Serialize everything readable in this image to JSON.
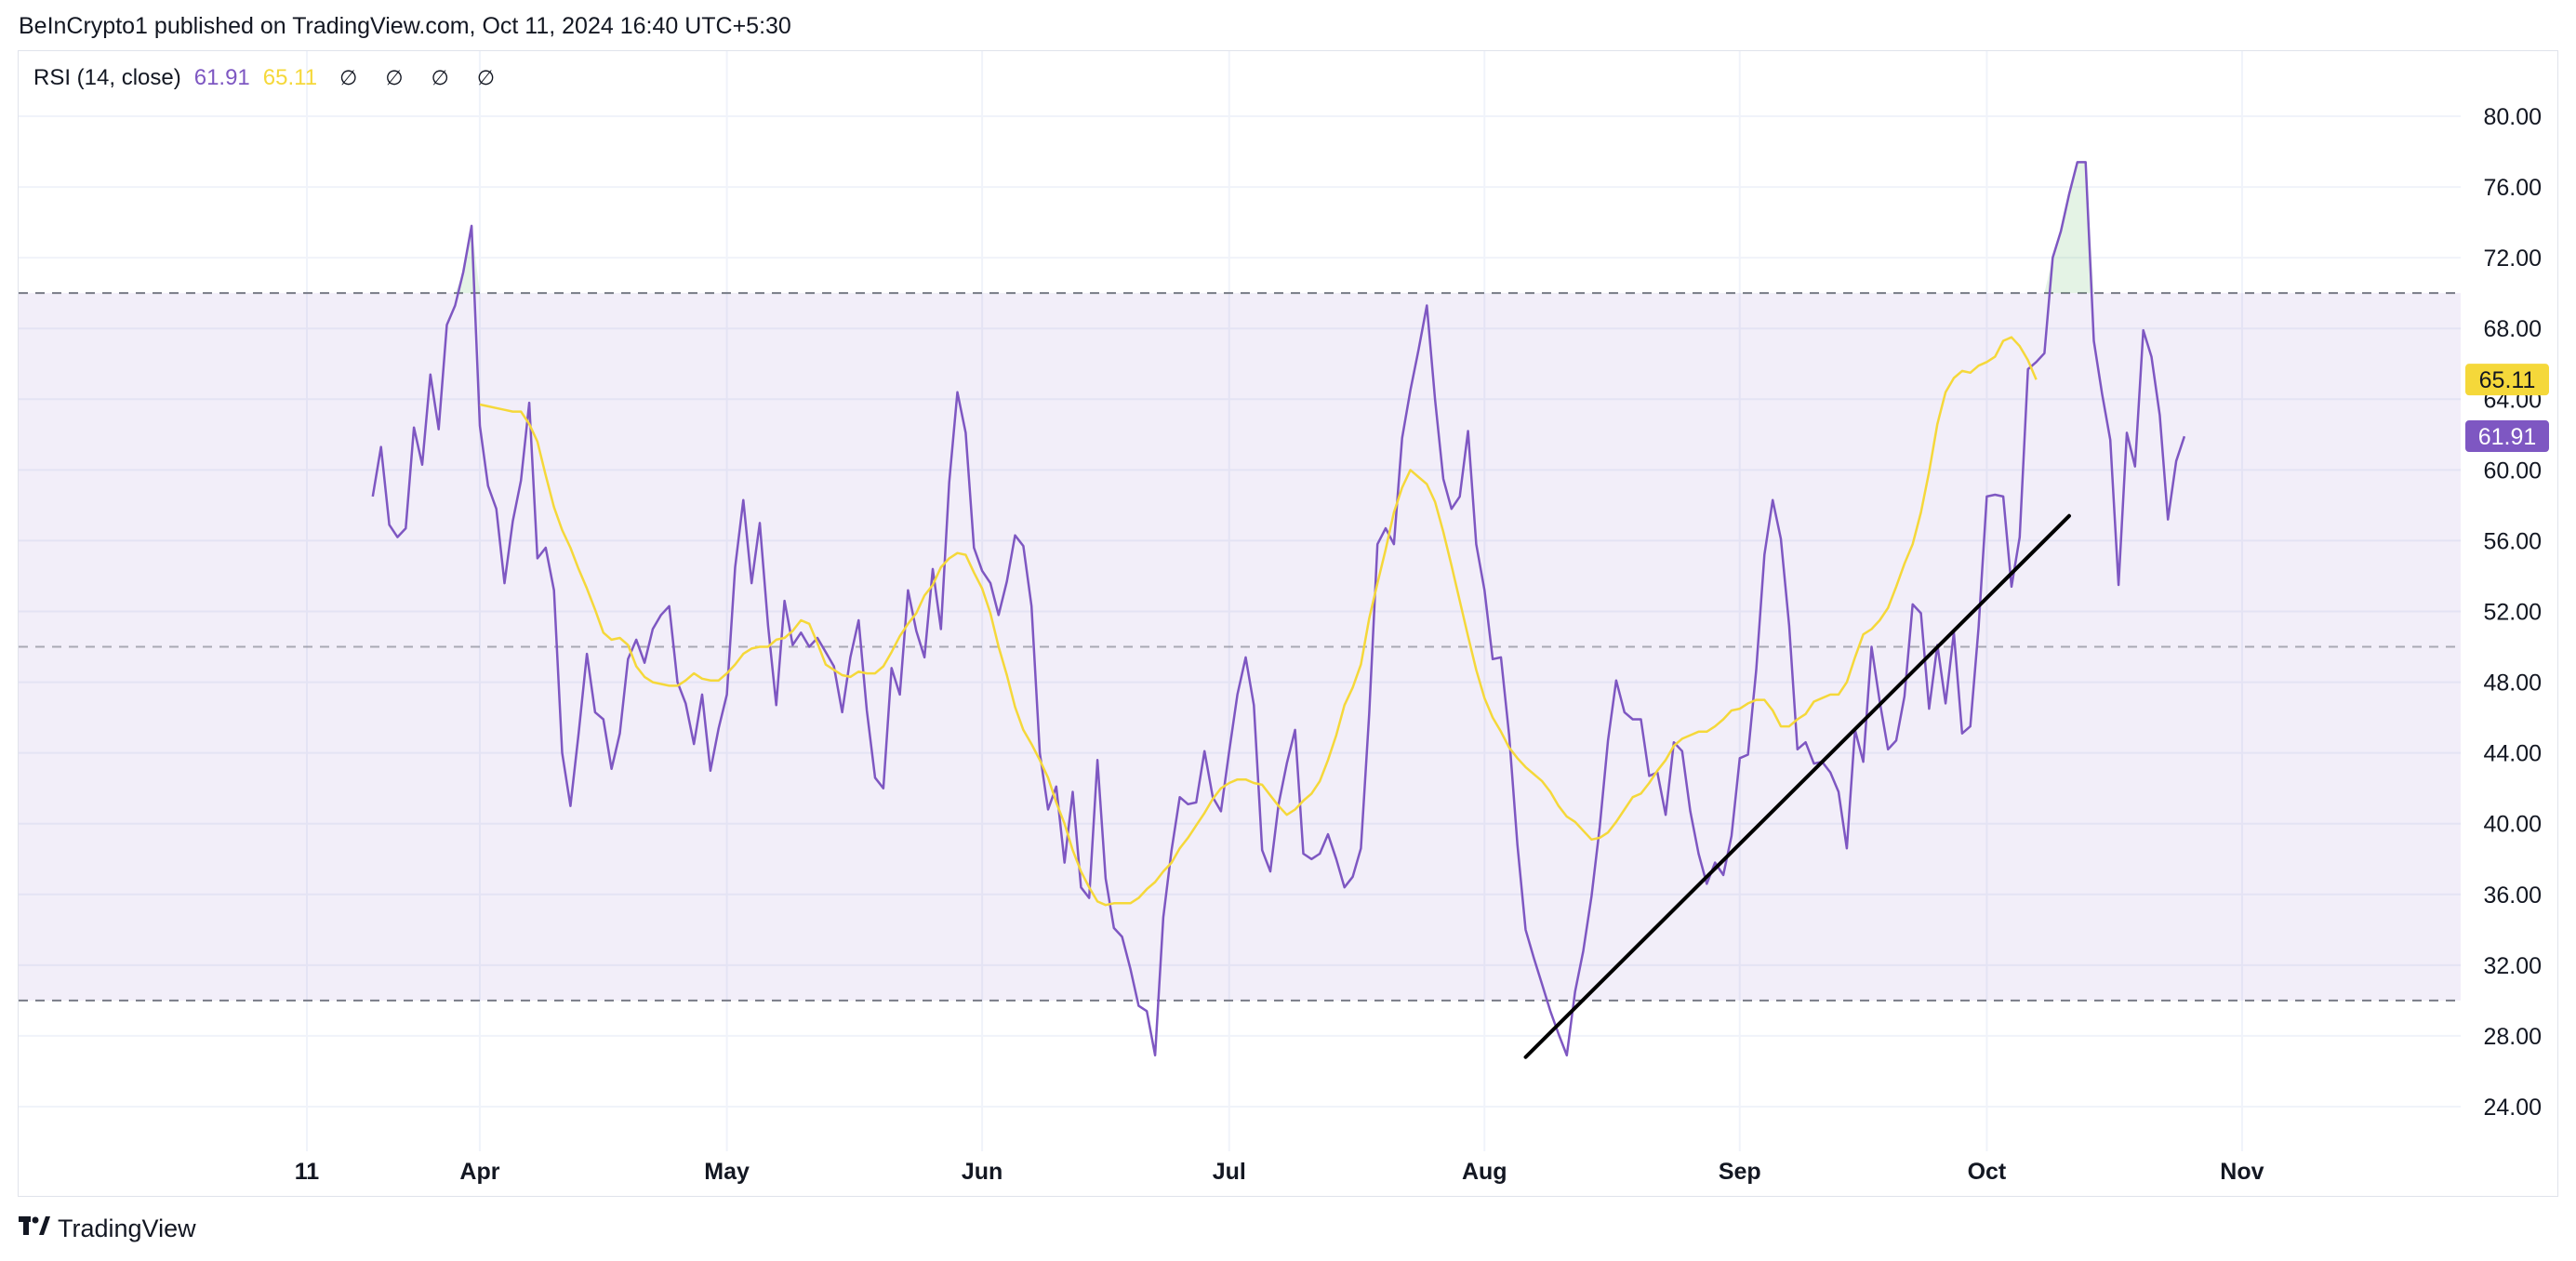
{
  "header": {
    "text": "BeInCrypto1 published on TradingView.com, Oct 11, 2024 16:40 UTC+5:30"
  },
  "legend": {
    "name": "RSI (14, close)",
    "rsi_value": "61.91",
    "ma_value": "65.11",
    "nulls": "∅ ∅ ∅ ∅"
  },
  "footer": {
    "logo_icon": "tradingview-logo-icon",
    "brand": "TradingView"
  },
  "colors": {
    "rsi": "#7e57c2",
    "rsi_ma": "#f5d83a",
    "band": "#7e57c2",
    "trendline": "#000000",
    "grid": "#f0f3fa"
  },
  "chart_data": {
    "type": "line",
    "ylim": [
      23,
      82
    ],
    "y_ticks": [
      "80.00",
      "76.00",
      "72.00",
      "68.00",
      "64.00",
      "60.00",
      "56.00",
      "52.00",
      "48.00",
      "44.00",
      "40.00",
      "36.00",
      "32.00",
      "28.00",
      "24.00"
    ],
    "x_ticks": [
      {
        "label": "11",
        "date": "2024-03-11"
      },
      {
        "label": "Apr",
        "date": "2024-04-01"
      },
      {
        "label": "May",
        "date": "2024-05-01"
      },
      {
        "label": "Jun",
        "date": "2024-06-01"
      },
      {
        "label": "Jul",
        "date": "2024-07-01"
      },
      {
        "label": "Aug",
        "date": "2024-08-01"
      },
      {
        "label": "Sep",
        "date": "2024-09-01"
      },
      {
        "label": "Oct",
        "date": "2024-10-01"
      },
      {
        "label": "Nov",
        "date": "2024-11-01"
      }
    ],
    "x_start": "2024-03-11",
    "bands": {
      "upper": 70,
      "middle": 50,
      "lower": 30
    },
    "series": [
      {
        "name": "RSI",
        "start_date": "2024-03-19",
        "values": [
          58.5,
          61.3,
          56.9,
          56.2,
          56.7,
          62.4,
          60.3,
          65.4,
          62.3,
          68.2,
          69.3,
          71.2,
          73.8,
          62.5,
          59.1,
          57.8,
          53.6,
          57.1,
          59.4,
          63.8,
          55.0,
          55.6,
          53.2,
          44.0,
          41.0,
          45.1,
          49.6,
          46.3,
          45.9,
          43.1,
          45.1,
          49.3,
          50.4,
          49.1,
          51.0,
          51.8,
          52.3,
          48.0,
          46.8,
          44.5,
          47.3,
          43.0,
          45.4,
          47.3,
          54.5,
          58.3,
          53.6,
          57.0,
          51.2,
          46.7,
          52.6,
          50.1,
          50.8,
          50.0,
          50.5,
          49.7,
          48.9,
          46.3,
          49.4,
          51.5,
          46.4,
          42.6,
          42.0,
          48.8,
          47.3,
          53.2,
          50.9,
          49.4,
          54.4,
          51.0,
          59.3,
          64.4,
          62.1,
          55.6,
          54.3,
          53.6,
          51.8,
          53.7,
          56.3,
          55.7,
          52.3,
          44.0,
          40.8,
          42.1,
          37.8,
          41.8,
          36.4,
          35.8,
          43.6,
          36.9,
          34.1,
          33.6,
          31.8,
          29.7,
          29.4,
          26.9,
          34.7,
          38.5,
          41.5,
          41.1,
          41.2,
          44.1,
          41.5,
          40.7,
          44.1,
          47.3,
          49.4,
          46.7,
          38.5,
          37.3,
          41.1,
          43.4,
          45.3,
          38.3,
          38.0,
          38.3,
          39.4,
          38.0,
          36.4,
          37.0,
          38.6,
          46.2,
          55.8,
          56.7,
          55.8,
          61.8,
          64.5,
          66.8,
          69.3,
          64.0,
          59.5,
          57.8,
          58.5,
          62.2,
          55.8,
          53.2,
          49.3,
          49.4,
          45.0,
          38.8,
          34.0,
          32.4,
          30.9,
          29.4,
          28.1,
          26.9,
          30.5,
          32.8,
          35.9,
          39.8,
          44.7,
          48.1,
          46.3,
          45.9,
          45.9,
          42.7,
          42.9,
          40.5,
          44.6,
          44.1,
          40.7,
          38.3,
          36.6,
          37.8,
          37.1,
          39.3,
          43.7,
          43.9,
          48.7,
          55.2,
          58.3,
          56.1,
          51.2,
          44.2,
          44.6,
          43.4,
          43.5,
          42.9,
          41.8,
          38.6,
          45.3,
          43.5,
          50.0,
          46.9,
          44.2,
          44.7,
          47.2,
          52.4,
          51.9,
          46.5,
          50.1,
          46.8,
          50.8,
          45.1,
          45.5,
          51.1,
          58.5,
          58.6,
          58.5,
          53.4,
          56.2,
          65.7,
          66.1,
          66.6,
          72.0,
          73.5,
          75.6,
          77.4,
          77.4,
          67.3,
          64.3,
          61.7,
          53.5,
          62.1,
          60.2,
          67.9,
          66.4,
          63.1,
          57.2,
          60.5,
          61.9
        ]
      },
      {
        "name": "RSI-based MA",
        "start_date": "2024-04-01",
        "values": [
          63.7,
          63.6,
          63.5,
          63.4,
          63.3,
          63.3,
          62.6,
          61.6,
          59.7,
          57.9,
          56.6,
          55.6,
          54.4,
          53.3,
          52.1,
          50.8,
          50.4,
          50.5,
          50.1,
          48.9,
          48.3,
          48.0,
          47.9,
          47.8,
          47.8,
          48.1,
          48.5,
          48.2,
          48.1,
          48.1,
          48.5,
          49.0,
          49.6,
          49.9,
          50.0,
          50.0,
          50.4,
          50.5,
          50.9,
          51.5,
          51.3,
          50.2,
          49.0,
          48.7,
          48.4,
          48.3,
          48.6,
          48.5,
          48.5,
          48.9,
          49.7,
          50.6,
          51.3,
          51.9,
          52.9,
          53.5,
          54.5,
          55.0,
          55.3,
          55.2,
          54.2,
          53.3,
          51.9,
          50.0,
          48.4,
          46.6,
          45.3,
          44.5,
          43.6,
          42.6,
          41.2,
          40.0,
          38.5,
          37.3,
          36.4,
          35.6,
          35.4,
          35.5,
          35.5,
          35.5,
          35.8,
          36.3,
          36.7,
          37.3,
          37.8,
          38.6,
          39.2,
          39.9,
          40.6,
          41.4,
          42.0,
          42.3,
          42.5,
          42.5,
          42.3,
          42.2,
          41.6,
          41.0,
          40.5,
          40.8,
          41.3,
          41.7,
          42.4,
          43.6,
          45.0,
          46.7,
          47.7,
          49.0,
          51.6,
          53.6,
          55.5,
          57.6,
          59.0,
          60.0,
          59.6,
          59.2,
          58.2,
          56.5,
          54.6,
          52.6,
          50.6,
          48.7,
          47.1,
          46.0,
          45.2,
          44.3,
          43.7,
          43.2,
          42.8,
          42.4,
          41.8,
          41.0,
          40.4,
          40.1,
          39.6,
          39.1,
          39.2,
          39.5,
          40.1,
          40.8,
          41.5,
          41.7,
          42.3,
          43.0,
          43.6,
          44.4,
          44.8,
          45.0,
          45.2,
          45.2,
          45.5,
          45.9,
          46.4,
          46.5,
          46.8,
          47.0,
          47.0,
          46.4,
          45.5,
          45.5,
          45.9,
          46.2,
          46.9,
          47.1,
          47.3,
          47.3,
          48.0,
          49.4,
          50.7,
          51.0,
          51.5,
          52.2,
          53.4,
          54.7,
          55.8,
          57.6,
          59.9,
          62.6,
          64.4,
          65.2,
          65.6,
          65.5,
          65.9,
          66.1,
          66.4,
          67.3,
          67.5,
          67.0,
          66.2,
          65.11
        ]
      }
    ],
    "trendline": {
      "start": {
        "date": "2024-08-06",
        "value": 26.8
      },
      "end": {
        "date": "2024-10-11",
        "value": 57.4
      }
    },
    "last_values": {
      "rsi": "61.91",
      "rsi_ma": "65.11"
    }
  }
}
